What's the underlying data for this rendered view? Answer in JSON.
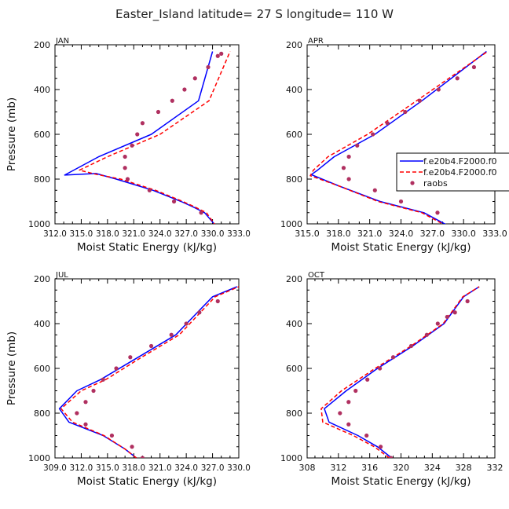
{
  "title": "Easter_Island  latitude= 27 S longitude= 110 W",
  "legend": {
    "entries": [
      {
        "label": "f.e20b4.F2000.f0",
        "color": "#0000ff",
        "style": "solid"
      },
      {
        "label": "f.e20b4.F2000.f0",
        "color": "#ff0000",
        "style": "dashed"
      },
      {
        "label": "raobs",
        "color": "#b03060",
        "style": "dot"
      }
    ]
  },
  "chart_data": [
    {
      "type": "line",
      "panel": "JAN",
      "xlabel": "Moist Static Energy (kJ/kg)",
      "ylabel": "Pressure (mb)",
      "xlim": [
        312.0,
        333.0
      ],
      "ylim": [
        1000,
        200
      ],
      "xticks": [
        "312.0",
        "315.0",
        "318.0",
        "321.0",
        "324.0",
        "327.0",
        "330.0",
        "333.0"
      ],
      "yticks": [
        "200",
        "400",
        "600",
        "800",
        "1000"
      ],
      "series": [
        {
          "name": "f.e20b4.F2000.f0",
          "color": "#0000ff",
          "style": "solid",
          "x": [
            330.4,
            329.1,
            327.8,
            326.4,
            323.2,
            319.0,
            316.7,
            313.1,
            317.0,
            323.0,
            328.4,
            330.0
          ],
          "y": [
            1010,
            950,
            925,
            900,
            850,
            800,
            775,
            782,
            700,
            600,
            450,
            230
          ]
        },
        {
          "name": "f.e20b4.F2000.f0",
          "color": "#ff0000",
          "style": "dashed",
          "x": [
            330.4,
            329.3,
            328.0,
            326.6,
            323.5,
            319.5,
            316.6,
            314.8,
            318.0,
            324.0,
            329.6,
            332.0
          ],
          "y": [
            1010,
            950,
            925,
            900,
            850,
            800,
            778,
            760,
            700,
            600,
            450,
            230
          ]
        },
        {
          "name": "raobs",
          "color": "#b03060",
          "style": "dot",
          "x": [
            328.7,
            325.6,
            322.8,
            320.3,
            320.0,
            320.0,
            320.8,
            321.4,
            322.0,
            323.8,
            325.4,
            326.8,
            328.0,
            329.5,
            330.6,
            331.0
          ],
          "y": [
            950,
            900,
            850,
            800,
            750,
            700,
            650,
            600,
            550,
            500,
            450,
            400,
            350,
            300,
            250,
            240
          ]
        }
      ]
    },
    {
      "type": "line",
      "panel": "APR",
      "xlabel": "Moist Static Energy (kJ/kg)",
      "ylabel": "Pressure (mb)",
      "xlim": [
        315.0,
        333.0
      ],
      "ylim": [
        1000,
        200
      ],
      "xticks": [
        "315.0",
        "318.0",
        "321.0",
        "324.0",
        "327.0",
        "330.0",
        "333.0"
      ],
      "yticks": [
        "200",
        "400",
        "600",
        "800",
        "1000"
      ],
      "series": [
        {
          "name": "f.e20b4.F2000.f0",
          "color": "#0000ff",
          "style": "solid",
          "x": [
            328.6,
            326.2,
            322.0,
            318.0,
            315.4,
            316.0,
            317.6,
            321.5,
            326.0,
            332.2
          ],
          "y": [
            1010,
            950,
            900,
            830,
            780,
            760,
            700,
            600,
            450,
            230
          ]
        },
        {
          "name": "f.e20b4.F2000.f0",
          "color": "#ff0000",
          "style": "dashed",
          "x": [
            328.4,
            326.0,
            321.8,
            318.0,
            315.3,
            315.6,
            317.0,
            320.8,
            325.5,
            332.3
          ],
          "y": [
            1010,
            950,
            900,
            830,
            785,
            760,
            700,
            600,
            450,
            230
          ]
        },
        {
          "name": "raobs",
          "color": "#b03060",
          "style": "dot",
          "x": [
            327.5,
            324.0,
            321.5,
            319.0,
            318.5,
            319.0,
            319.8,
            321.3,
            322.7,
            324.4,
            325.8,
            327.6,
            329.4,
            331.0
          ],
          "y": [
            950,
            900,
            850,
            800,
            750,
            700,
            650,
            600,
            550,
            500,
            450,
            400,
            350,
            300
          ]
        }
      ]
    },
    {
      "type": "line",
      "panel": "JUL",
      "xlabel": "Moist Static Energy (kJ/kg)",
      "ylabel": "Pressure (mb)",
      "xlim": [
        309.0,
        330.0
      ],
      "ylim": [
        1000,
        200
      ],
      "xticks": [
        "309.0",
        "312.0",
        "315.0",
        "318.0",
        "321.0",
        "324.0",
        "327.0",
        "330.0"
      ],
      "yticks": [
        "200",
        "400",
        "600",
        "800",
        "1000"
      ],
      "series": [
        {
          "name": "f.e20b4.F2000.f0",
          "color": "#0000ff",
          "style": "solid",
          "x": [
            318.3,
            317.0,
            314.5,
            310.6,
            309.5,
            311.5,
            314.2,
            318.5,
            322.8,
            327.0,
            329.8
          ],
          "y": [
            1000,
            960,
            900,
            840,
            780,
            700,
            650,
            550,
            450,
            280,
            235
          ]
        },
        {
          "name": "f.e20b4.F2000.f0",
          "color": "#ff0000",
          "style": "dashed",
          "x": [
            318.3,
            317.0,
            314.6,
            311.0,
            309.7,
            312.0,
            314.8,
            318.9,
            323.2,
            327.3,
            330.0
          ],
          "y": [
            1000,
            960,
            900,
            840,
            780,
            700,
            650,
            550,
            450,
            280,
            235
          ]
        },
        {
          "name": "raobs",
          "color": "#b03060",
          "style": "dot",
          "x": [
            319.0,
            317.8,
            315.5,
            312.5,
            311.5,
            312.5,
            313.4,
            314.5,
            316.0,
            317.6,
            320.0,
            322.3,
            324.0,
            325.5,
            327.6
          ],
          "y": [
            1000,
            950,
            900,
            850,
            800,
            750,
            700,
            650,
            600,
            550,
            500,
            450,
            400,
            350,
            300
          ]
        }
      ]
    },
    {
      "type": "line",
      "panel": "OCT",
      "xlabel": "Moist Static Energy (kJ/kg)",
      "ylabel": "Pressure (mb)",
      "xlim": [
        308,
        332
      ],
      "ylim": [
        1000,
        200
      ],
      "xticks": [
        "308",
        "312",
        "316",
        "320",
        "324",
        "328",
        "332"
      ],
      "yticks": [
        "200",
        "400",
        "600",
        "800",
        "1000"
      ],
      "series": [
        {
          "name": "f.e20b4.F2000.f0",
          "color": "#0000ff",
          "style": "solid",
          "x": [
            318.8,
            317.0,
            314.5,
            310.8,
            310.2,
            313.0,
            317.0,
            321.5,
            325.5,
            328.0,
            330.0
          ],
          "y": [
            1000,
            950,
            900,
            840,
            780,
            700,
            600,
            500,
            400,
            280,
            235
          ]
        },
        {
          "name": "f.e20b4.F2000.f0",
          "color": "#ff0000",
          "style": "dashed",
          "x": [
            318.5,
            316.6,
            313.9,
            310.0,
            309.8,
            312.4,
            316.7,
            321.3,
            325.4,
            327.9,
            330.0
          ],
          "y": [
            1000,
            950,
            900,
            840,
            780,
            700,
            600,
            500,
            400,
            280,
            235
          ]
        },
        {
          "name": "raobs",
          "color": "#b03060",
          "style": "dot",
          "x": [
            318.7,
            317.4,
            315.6,
            313.3,
            312.2,
            313.3,
            314.2,
            315.7,
            317.3,
            319.0,
            321.3,
            323.3,
            324.7,
            325.9,
            326.9,
            328.5
          ],
          "y": [
            1000,
            950,
            900,
            850,
            800,
            750,
            700,
            650,
            600,
            550,
            500,
            450,
            400,
            370,
            350,
            300
          ]
        }
      ]
    }
  ]
}
